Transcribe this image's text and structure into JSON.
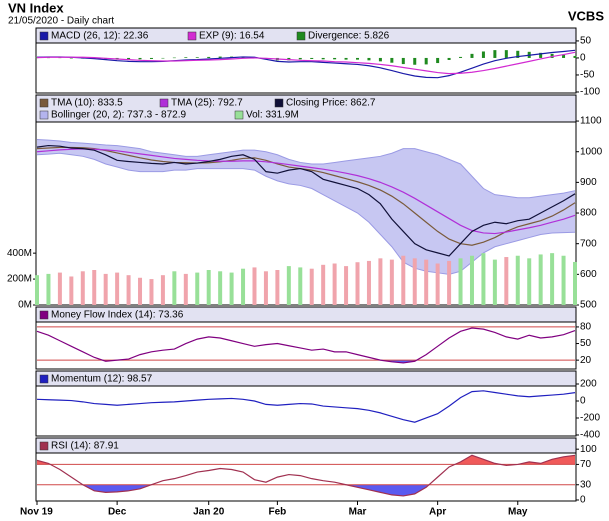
{
  "header": {
    "title": "VN Index",
    "subtitle": "21/05/2020 - Daily chart",
    "brand": "VCBS"
  },
  "chart_data": [
    {
      "type": "line",
      "ylim": [
        -103,
        88
      ],
      "yticks": [
        50,
        0,
        -50,
        -100
      ],
      "series": [
        {
          "name": "MACD (26, 12): 22.36",
          "color": "#1a1aa8",
          "values": [
            2,
            3,
            3,
            2,
            0,
            -2,
            -5,
            -8,
            -10,
            -11,
            -11,
            -10,
            -8,
            -6,
            -5,
            -3,
            -1,
            1,
            3,
            2,
            -4,
            -10,
            -12,
            -11,
            -11,
            -13,
            -15,
            -17,
            -19,
            -23,
            -29,
            -37,
            -46,
            -53,
            -57,
            -58,
            -52,
            -42,
            -30,
            -18,
            -8,
            -1,
            4,
            8,
            12,
            16,
            19,
            22.36
          ]
        },
        {
          "name": "EXP (9): 16.54",
          "color": "#d22ad2",
          "values": [
            1,
            2,
            2,
            2,
            2,
            1,
            -1,
            -3,
            -5,
            -7,
            -8,
            -9,
            -9,
            -8,
            -7,
            -6,
            -5,
            -3,
            -1,
            0,
            -1,
            -3,
            -5,
            -7,
            -8,
            -9,
            -11,
            -12,
            -14,
            -16,
            -19,
            -23,
            -28,
            -33,
            -38,
            -43,
            -46,
            -45,
            -42,
            -37,
            -31,
            -24,
            -17,
            -10,
            -3,
            4,
            10,
            16.54
          ]
        },
        {
          "name": "Divergence: 5.826",
          "color": "#1f8a1f",
          "type": "bar",
          "values": [
            1,
            1,
            1,
            0,
            -2,
            -3,
            -4,
            -5,
            -5,
            -4,
            -3,
            -1,
            1,
            2,
            2,
            3,
            4,
            4,
            4,
            2,
            -3,
            -7,
            -7,
            -4,
            -3,
            -4,
            -4,
            -5,
            -5,
            -7,
            -10,
            -14,
            -18,
            -20,
            -19,
            -15,
            -6,
            3,
            12,
            19,
            23,
            23,
            21,
            18,
            15,
            12,
            9,
            5.826
          ]
        }
      ]
    },
    {
      "type": "line",
      "ylim": [
        500,
        1185
      ],
      "yticks": [
        1100,
        1000,
        900,
        800,
        700,
        600,
        500
      ],
      "y2lim": [
        0,
        1620
      ],
      "y2ticks": [
        {
          "value": 400,
          "label": "400M"
        },
        {
          "value": 200,
          "label": "200M"
        },
        {
          "value": 0,
          "label": "0M"
        }
      ],
      "series": [
        {
          "name": "TMA (10): 833.5",
          "color": "#7a5a3a",
          "values": [
            1010,
            1012,
            1014,
            1014,
            1013,
            1010,
            1004,
            996,
            988,
            980,
            973,
            968,
            965,
            964,
            963,
            964,
            967,
            972,
            978,
            980,
            972,
            960,
            950,
            945,
            940,
            932,
            922,
            912,
            902,
            890,
            875,
            855,
            830,
            800,
            770,
            740,
            715,
            700,
            695,
            705,
            720,
            740,
            755,
            765,
            775,
            790,
            810,
            833.5
          ]
        },
        {
          "name": "TMA (25): 792.7",
          "color": "#b030d8",
          "values": [
            1000,
            1003,
            1006,
            1008,
            1009,
            1008,
            1006,
            1003,
            998,
            993,
            988,
            983,
            978,
            975,
            972,
            970,
            969,
            969,
            970,
            970,
            967,
            963,
            958,
            953,
            948,
            943,
            937,
            930,
            922,
            912,
            900,
            885,
            868,
            848,
            826,
            804,
            782,
            760,
            743,
            735,
            733,
            738,
            745,
            752,
            760,
            770,
            780,
            792.7
          ]
        },
        {
          "name": "Closing Price: 862.7",
          "color": "#101038",
          "values": [
            1015,
            1020,
            1018,
            1012,
            1010,
            1005,
            990,
            972,
            968,
            965,
            962,
            960,
            965,
            960,
            963,
            968,
            975,
            985,
            990,
            975,
            935,
            930,
            940,
            945,
            935,
            910,
            900,
            890,
            880,
            860,
            830,
            780,
            740,
            700,
            680,
            670,
            660,
            700,
            740,
            760,
            770,
            765,
            775,
            780,
            800,
            820,
            840,
            862.7
          ]
        },
        {
          "name": "Bollinger (20, 2): 737.3 - 872.9",
          "color": "#b4b4ee",
          "type": "band",
          "upper": [
            1040,
            1038,
            1035,
            1030,
            1028,
            1025,
            1022,
            1020,
            1015,
            1010,
            1000,
            995,
            990,
            985,
            985,
            990,
            995,
            1000,
            1005,
            1005,
            1000,
            990,
            975,
            965,
            960,
            960,
            965,
            970,
            975,
            980,
            985,
            995,
            1010,
            1010,
            1000,
            990,
            975,
            960,
            920,
            880,
            860,
            855,
            850,
            850,
            855,
            860,
            865,
            872.9
          ],
          "lower": [
            990,
            992,
            995,
            990,
            985,
            975,
            960,
            950,
            940,
            935,
            935,
            935,
            940,
            940,
            945,
            945,
            945,
            945,
            945,
            940,
            920,
            905,
            895,
            890,
            880,
            860,
            840,
            820,
            800,
            770,
            730,
            690,
            640,
            620,
            610,
            605,
            600,
            610,
            640,
            670,
            690,
            700,
            710,
            720,
            730,
            735,
            736,
            737.3
          ]
        },
        {
          "name": "Vol: 331.9M",
          "color": "#98e098",
          "down_color": "#f0a4ac",
          "type": "bar",
          "axis": "y2",
          "values": [
            230,
            240,
            250,
            220,
            260,
            270,
            240,
            250,
            230,
            210,
            200,
            230,
            260,
            240,
            250,
            270,
            260,
            250,
            280,
            290,
            260,
            270,
            300,
            290,
            280,
            310,
            320,
            300,
            330,
            340,
            360,
            350,
            380,
            360,
            350,
            320,
            340,
            360,
            380,
            400,
            350,
            370,
            380,
            360,
            390,
            400,
            380,
            331.9
          ]
        }
      ]
    },
    {
      "type": "line",
      "ylim": [
        4,
        116
      ],
      "yticks": [
        80,
        50,
        20
      ],
      "ref_lines": [
        80,
        20
      ],
      "ref_color": "#d04848",
      "fills": [
        {
          "below": 20,
          "color": "#5a5af0"
        }
      ],
      "series": [
        {
          "name": "Money Flow Index (14): 73.36",
          "color": "#800080",
          "values": [
            72,
            65,
            55,
            45,
            35,
            25,
            18,
            20,
            22,
            30,
            35,
            38,
            40,
            50,
            58,
            62,
            60,
            55,
            50,
            45,
            48,
            50,
            46,
            42,
            38,
            40,
            35,
            35,
            30,
            25,
            20,
            17,
            15,
            18,
            30,
            45,
            60,
            72,
            78,
            76,
            70,
            62,
            58,
            65,
            60,
            62,
            66,
            73.36
          ]
        }
      ]
    },
    {
      "type": "line",
      "ylim": [
        -412,
        353
      ],
      "yticks": [
        200,
        0,
        -200,
        -400
      ],
      "series": [
        {
          "name": "Momentum (12): 98.57",
          "color": "#2020c0",
          "values": [
            20,
            15,
            10,
            5,
            -10,
            -30,
            -40,
            -50,
            -40,
            -30,
            -20,
            -15,
            -10,
            0,
            10,
            20,
            25,
            30,
            20,
            0,
            -40,
            -50,
            -40,
            -30,
            -35,
            -60,
            -70,
            -80,
            -90,
            -110,
            -140,
            -180,
            -220,
            -250,
            -200,
            -150,
            -60,
            40,
            110,
            120,
            100,
            80,
            60,
            50,
            60,
            70,
            80,
            98.57
          ]
        }
      ]
    },
    {
      "type": "line",
      "ylim": [
        -2,
        122
      ],
      "yticks": [
        100,
        70,
        30,
        0
      ],
      "ref_lines": [
        70,
        30
      ],
      "ref_color": "#d04848",
      "fills": [
        {
          "above": 70,
          "color": "#f05a5a"
        },
        {
          "below": 30,
          "color": "#5a5af0"
        }
      ],
      "categories": [
        "Nov 19",
        null,
        null,
        null,
        null,
        null,
        null,
        "Dec",
        null,
        null,
        null,
        null,
        null,
        null,
        null,
        "Jan 20",
        null,
        null,
        null,
        null,
        null,
        "Feb",
        null,
        null,
        null,
        null,
        null,
        null,
        "Mar",
        null,
        null,
        null,
        null,
        null,
        null,
        "Apr",
        null,
        null,
        null,
        null,
        null,
        null,
        "May",
        null,
        null,
        null,
        null,
        null
      ],
      "series": [
        {
          "name": "RSI (14): 87.91",
          "color": "#a03050",
          "values": [
            78,
            72,
            60,
            45,
            30,
            18,
            15,
            16,
            18,
            22,
            30,
            38,
            42,
            48,
            55,
            58,
            62,
            60,
            55,
            40,
            35,
            45,
            50,
            48,
            42,
            38,
            35,
            30,
            25,
            20,
            15,
            10,
            8,
            12,
            25,
            45,
            65,
            75,
            88,
            80,
            72,
            68,
            70,
            75,
            72,
            80,
            85,
            87.91
          ]
        }
      ]
    }
  ]
}
